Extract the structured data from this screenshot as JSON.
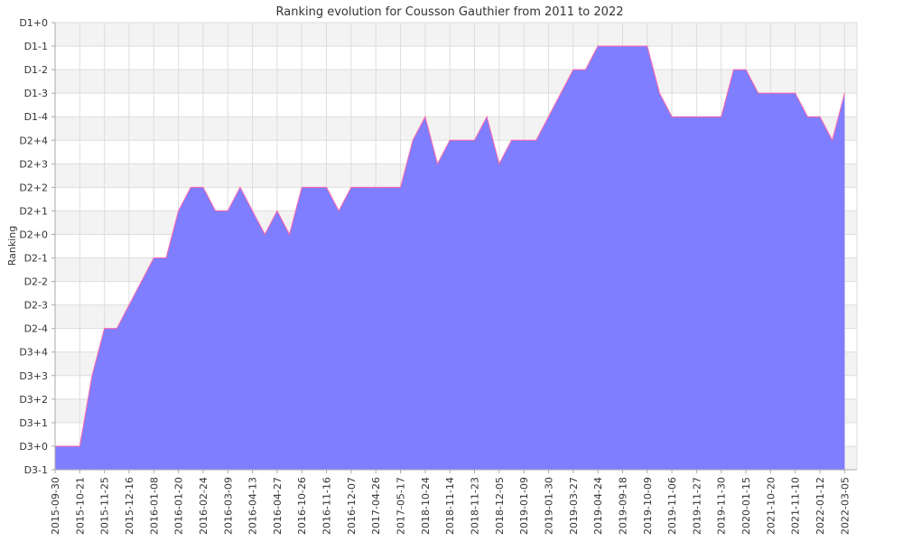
{
  "chart_data": {
    "type": "area",
    "title": "Ranking evolution for Cousson Gauthier from 2011 to 2022",
    "ylabel": "Ranking",
    "xlabel": "",
    "y_tick_labels": [
      "D3-1",
      "D3+0",
      "D3+1",
      "D3+2",
      "D3+3",
      "D3+4",
      "D2-4",
      "D2-3",
      "D2-2",
      "D2-1",
      "D2+0",
      "D2+1",
      "D2+2",
      "D2+3",
      "D2+4",
      "D1-4",
      "D1-3",
      "D1-2",
      "D1-1",
      "D1+0"
    ],
    "x_tick_labels": [
      "2015-09-30",
      "2015-10-21",
      "2015-11-25",
      "2015-12-16",
      "2016-01-08",
      "2016-01-20",
      "2016-02-24",
      "2016-03-09",
      "2016-04-13",
      "2016-04-27",
      "2016-10-26",
      "2016-11-16",
      "2016-12-07",
      "2017-04-26",
      "2017-05-17",
      "2018-10-24",
      "2018-11-14",
      "2018-11-23",
      "2018-12-05",
      "2019-01-09",
      "2019-01-30",
      "2019-03-27",
      "2019-04-24",
      "2019-09-18",
      "2019-10-09",
      "2019-11-06",
      "2019-11-27",
      "2019-11-30",
      "2020-01-15",
      "2021-10-20",
      "2021-11-10",
      "2022-01-12",
      "2022-03-05"
    ],
    "series": [
      {
        "values": [
          {
            "x": 0,
            "y": "D3+0"
          },
          {
            "x": 1,
            "y": "D3+0"
          },
          {
            "x": 1.5,
            "y": "D3+3"
          },
          {
            "x": 2,
            "y": "D2-4"
          },
          {
            "x": 2.5,
            "y": "D2-4"
          },
          {
            "x": 3,
            "y": "D2-3"
          },
          {
            "x": 3.5,
            "y": "D2-2"
          },
          {
            "x": 4,
            "y": "D2-1"
          },
          {
            "x": 4.5,
            "y": "D2-1"
          },
          {
            "x": 5,
            "y": "D2+1"
          },
          {
            "x": 5.5,
            "y": "D2+2"
          },
          {
            "x": 6,
            "y": "D2+2"
          },
          {
            "x": 6.5,
            "y": "D2+1"
          },
          {
            "x": 7,
            "y": "D2+1"
          },
          {
            "x": 7.5,
            "y": "D2+2"
          },
          {
            "x": 8,
            "y": "D2+1"
          },
          {
            "x": 8.5,
            "y": "D2+0"
          },
          {
            "x": 9,
            "y": "D2+1"
          },
          {
            "x": 9.5,
            "y": "D2+0"
          },
          {
            "x": 10,
            "y": "D2+2"
          },
          {
            "x": 11,
            "y": "D2+2"
          },
          {
            "x": 11.5,
            "y": "D2+1"
          },
          {
            "x": 12,
            "y": "D2+2"
          },
          {
            "x": 14,
            "y": "D2+2"
          },
          {
            "x": 14.5,
            "y": "D2+4"
          },
          {
            "x": 15,
            "y": "D1-4"
          },
          {
            "x": 15.5,
            "y": "D2+3"
          },
          {
            "x": 16,
            "y": "D2+4"
          },
          {
            "x": 17,
            "y": "D2+4"
          },
          {
            "x": 17.5,
            "y": "D1-4"
          },
          {
            "x": 18,
            "y": "D2+3"
          },
          {
            "x": 18.5,
            "y": "D2+4"
          },
          {
            "x": 19.5,
            "y": "D2+4"
          },
          {
            "x": 20,
            "y": "D1-4"
          },
          {
            "x": 20.5,
            "y": "D1-3"
          },
          {
            "x": 21,
            "y": "D1-2"
          },
          {
            "x": 21.5,
            "y": "D1-2"
          },
          {
            "x": 22,
            "y": "D1-1"
          },
          {
            "x": 24,
            "y": "D1-1"
          },
          {
            "x": 24.5,
            "y": "D1-3"
          },
          {
            "x": 25,
            "y": "D1-4"
          },
          {
            "x": 27,
            "y": "D1-4"
          },
          {
            "x": 27.5,
            "y": "D1-2"
          },
          {
            "x": 28,
            "y": "D1-2"
          },
          {
            "x": 28.5,
            "y": "D1-3"
          },
          {
            "x": 30,
            "y": "D1-3"
          },
          {
            "x": 30.5,
            "y": "D1-4"
          },
          {
            "x": 31,
            "y": "D1-4"
          },
          {
            "x": 31.5,
            "y": "D2+4"
          },
          {
            "x": 32,
            "y": "D1-3"
          }
        ]
      }
    ],
    "grid": true,
    "legend": "none",
    "colors": {
      "fill": "#7777ff",
      "line": "#ff66aa",
      "band": "#f3f3f3",
      "grid": "#dddddd",
      "axis": "#aaaaaa"
    }
  }
}
